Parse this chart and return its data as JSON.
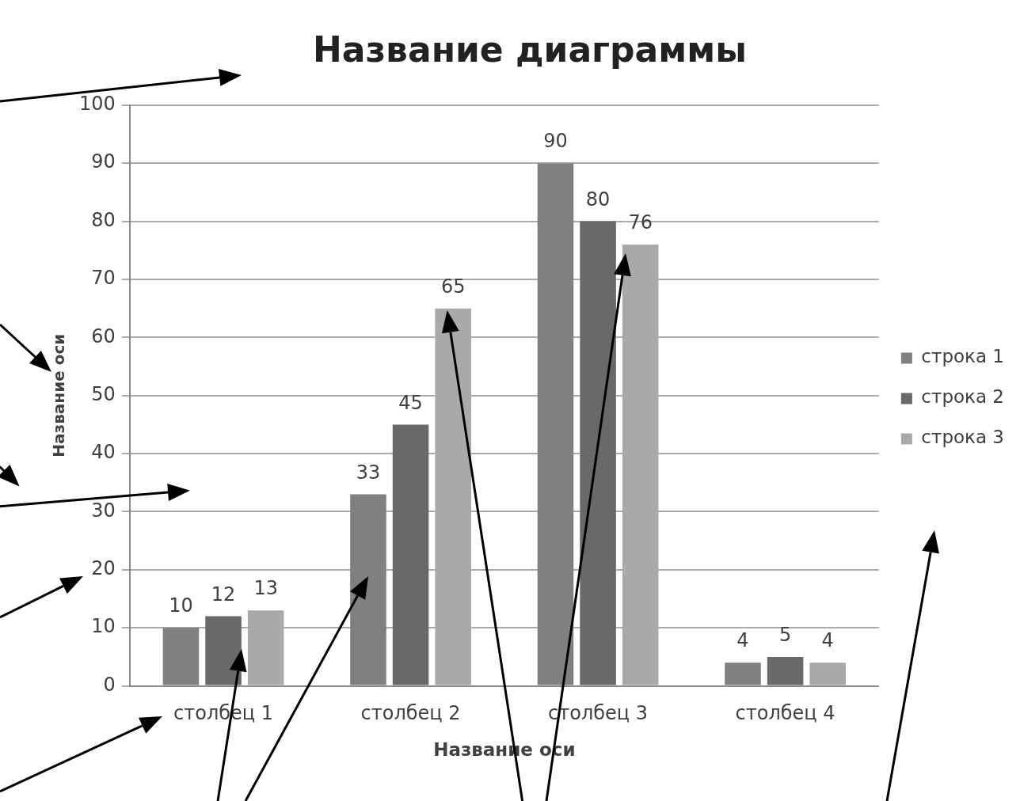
{
  "chart_data": {
    "type": "bar",
    "title": "Название диаграммы",
    "xlabel": "Название оси",
    "ylabel": "Название оси",
    "categories": [
      "столбец 1",
      "столбец 2",
      "столбец 3",
      "столбец 4"
    ],
    "series": [
      {
        "name": "строка 1",
        "color": "#808080",
        "values": [
          10,
          33,
          90,
          4
        ]
      },
      {
        "name": "строка 2",
        "color": "#696969",
        "values": [
          12,
          45,
          80,
          5
        ]
      },
      {
        "name": "строка 3",
        "color": "#a9a9a9",
        "values": [
          13,
          65,
          76,
          4
        ]
      }
    ],
    "ylim": [
      0,
      100
    ],
    "yticks": [
      0,
      10,
      20,
      30,
      40,
      50,
      60,
      70,
      80,
      90,
      100
    ],
    "grid": "y",
    "legend": "right",
    "data_labels": true
  }
}
